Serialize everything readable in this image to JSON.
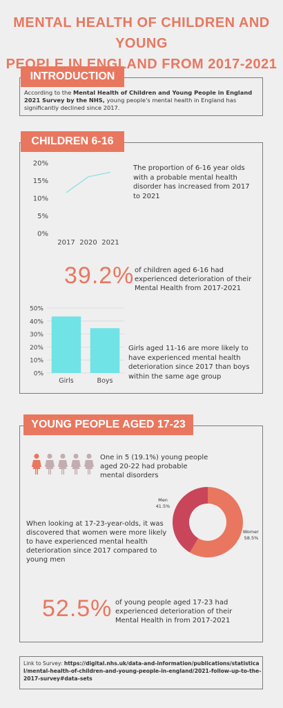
{
  "title_line1": "MENTAL HEALTH OF CHILDREN AND YOUNG",
  "title_line2": "PEOPLE IN ENGLAND FROM 2017-2021",
  "intro": {
    "banner": "INTRODUCTION",
    "text_pre": "According to the ",
    "text_bold": "Mental Health of Children and Young People in England 2021 Survey by the NHS,",
    "text_post": " young people's mental health in England has significantly declined since 2017."
  },
  "children": {
    "banner": "CHILDREN 6-16",
    "line_text": "The proportion of 6-16 year olds with a probable mental health disorder has increased from 2017 to 2021",
    "stat_value": "39.2%",
    "stat_text": "of children aged 6-16 had experienced deterioration of their Mental Health from 2017-2021",
    "bar_text": "Girls aged 11-16 are more likely to have experienced mental health deterioration since 2017 than boys within the same age group"
  },
  "young": {
    "banner": "YOUNG PEOPLE AGED 17-23",
    "people_text": "One in 5 (19.1%) young people aged 20-22 had probable mental disorders",
    "donut_text": "When looking at 17-23-year-olds, it was discovered that women were more likely to have experienced mental health deterioration since 2017 compared to young men",
    "stat_value": "52.5%",
    "stat_text": "of young people aged 17-23 had experienced deterioration of their Mental Health in from 2017-2021",
    "people_total": 5,
    "people_highlighted": 1
  },
  "link": {
    "label": "Link to Survey:",
    "url": "https://digital.nhs.uk/data-and-information/publications/statistical/mental-health-of-children-and-young-people-in-england/2021-follow-up-to-the-2017-survey#data-sets"
  },
  "colors": {
    "accent": "#e9775f",
    "teal": "#6fe3e6",
    "line": "#8fdfe3",
    "crimson": "#c9465a",
    "grey_person": "#c3adb0"
  },
  "chart_data": [
    {
      "type": "line",
      "x": [
        "2017",
        "2020",
        "2021"
      ],
      "series": [
        {
          "values": [
            11.6,
            16.1,
            17.4
          ]
        }
      ],
      "ylim": [
        0,
        20
      ],
      "yticks": [
        "0%",
        "5%",
        "10%",
        "15%",
        "20%"
      ],
      "grid": false
    },
    {
      "type": "bar",
      "categories": [
        "Girls",
        "Boys"
      ],
      "values": [
        43.5,
        34.5
      ],
      "ylim": [
        0,
        50
      ],
      "yticks": [
        "0%",
        "10%",
        "20%",
        "30%",
        "40%",
        "50%"
      ],
      "grid": true
    },
    {
      "type": "pie",
      "donut": true,
      "labels": [
        "Women",
        "Men"
      ],
      "values": [
        58.5,
        41.5
      ],
      "value_labels": [
        "58.5%",
        "41.5%"
      ]
    }
  ]
}
